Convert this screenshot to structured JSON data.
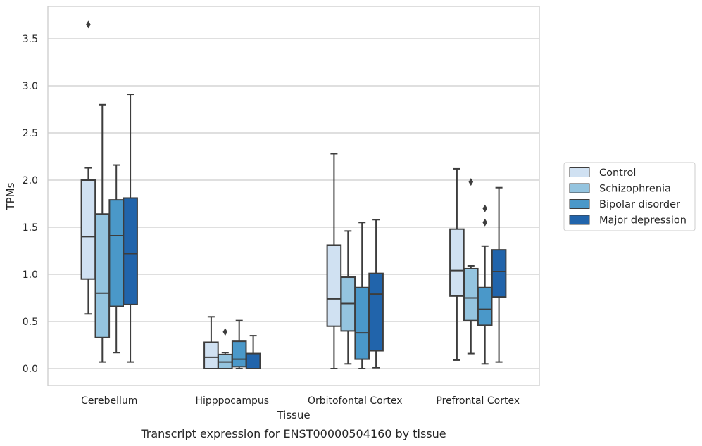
{
  "chart_data": {
    "type": "box",
    "xlabel": "Tissue",
    "ylabel": "TPMs",
    "caption": "Transcript expression for ENST00000504160 by tissue",
    "ylim": [
      -0.18,
      3.85
    ],
    "yticks": [
      0.0,
      0.5,
      1.0,
      1.5,
      2.0,
      2.5,
      3.0,
      3.5
    ],
    "ytick_labels": [
      "0.0",
      "0.5",
      "1.0",
      "1.5",
      "2.0",
      "2.5",
      "3.0",
      "3.5"
    ],
    "grid": "horizontal",
    "legend_position": "right",
    "categories": [
      "Cerebellum",
      "Hipppocampus",
      "Orbitofontal Cortex",
      "Prefrontal Cortex"
    ],
    "series": [
      {
        "name": "Control",
        "color": "#d0e1f2",
        "boxes": [
          {
            "whisker_low": 0.58,
            "q1": 0.95,
            "median": 1.4,
            "q3": 2.0,
            "whisker_high": 2.13,
            "outliers": [
              3.65
            ]
          },
          {
            "whisker_low": 0.0,
            "q1": 0.0,
            "median": 0.12,
            "q3": 0.28,
            "whisker_high": 0.55,
            "outliers": []
          },
          {
            "whisker_low": 0.0,
            "q1": 0.45,
            "median": 0.74,
            "q3": 1.31,
            "whisker_high": 2.28,
            "outliers": []
          },
          {
            "whisker_low": 0.09,
            "q1": 0.77,
            "median": 1.04,
            "q3": 1.48,
            "whisker_high": 2.12,
            "outliers": []
          }
        ]
      },
      {
        "name": "Schizophrenia",
        "color": "#94c4df",
        "boxes": [
          {
            "whisker_low": 0.07,
            "q1": 0.33,
            "median": 0.8,
            "q3": 1.64,
            "whisker_high": 2.8,
            "outliers": []
          },
          {
            "whisker_low": 0.0,
            "q1": 0.0,
            "median": 0.07,
            "q3": 0.15,
            "whisker_high": 0.17,
            "outliers": [
              0.39
            ]
          },
          {
            "whisker_low": 0.05,
            "q1": 0.4,
            "median": 0.69,
            "q3": 0.97,
            "whisker_high": 1.46,
            "outliers": []
          },
          {
            "whisker_low": 0.16,
            "q1": 0.51,
            "median": 0.75,
            "q3": 1.06,
            "whisker_high": 1.09,
            "outliers": [
              1.98
            ]
          }
        ]
      },
      {
        "name": "Bipolar disorder",
        "color": "#4a98c9",
        "boxes": [
          {
            "whisker_low": 0.17,
            "q1": 0.66,
            "median": 1.41,
            "q3": 1.79,
            "whisker_high": 2.16,
            "outliers": []
          },
          {
            "whisker_low": 0.0,
            "q1": 0.02,
            "median": 0.1,
            "q3": 0.29,
            "whisker_high": 0.51,
            "outliers": []
          },
          {
            "whisker_low": 0.0,
            "q1": 0.1,
            "median": 0.38,
            "q3": 0.86,
            "whisker_high": 1.55,
            "outliers": []
          },
          {
            "whisker_low": 0.05,
            "q1": 0.46,
            "median": 0.63,
            "q3": 0.86,
            "whisker_high": 1.3,
            "outliers": [
              1.7,
              1.55
            ]
          }
        ]
      },
      {
        "name": "Major depression",
        "color": "#2164ab",
        "boxes": [
          {
            "whisker_low": 0.07,
            "q1": 0.68,
            "median": 1.22,
            "q3": 1.81,
            "whisker_high": 2.91,
            "outliers": []
          },
          {
            "whisker_low": 0.0,
            "q1": 0.0,
            "median": 0.0,
            "q3": 0.16,
            "whisker_high": 0.35,
            "outliers": []
          },
          {
            "whisker_low": 0.01,
            "q1": 0.19,
            "median": 0.79,
            "q3": 1.01,
            "whisker_high": 1.58,
            "outliers": []
          },
          {
            "whisker_low": 0.07,
            "q1": 0.76,
            "median": 1.03,
            "q3": 1.26,
            "whisker_high": 1.92,
            "outliers": []
          }
        ]
      }
    ]
  }
}
